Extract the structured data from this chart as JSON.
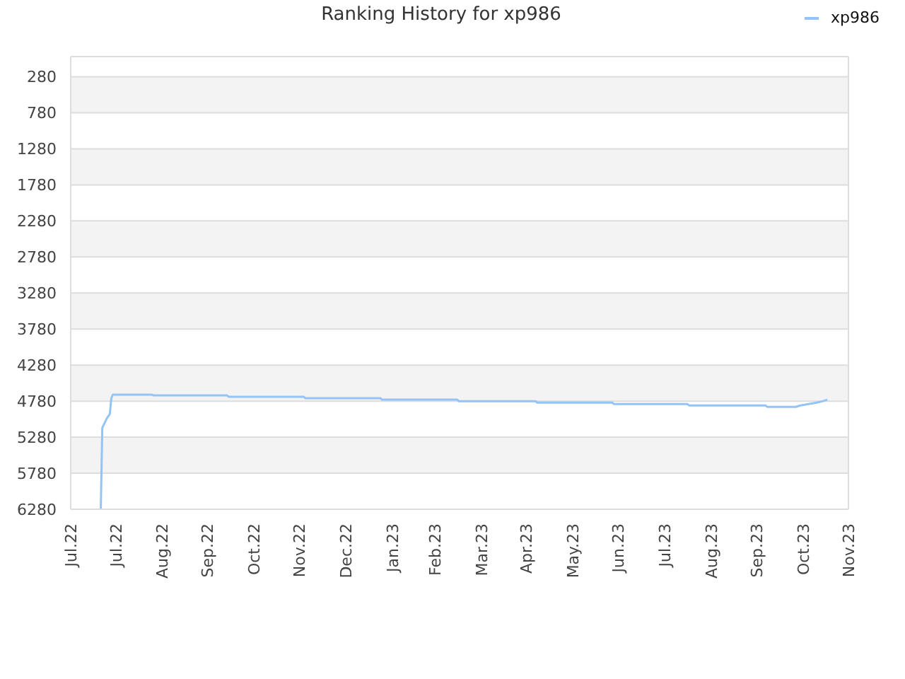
{
  "chart_data": {
    "type": "line",
    "title": "Ranking History for xp986",
    "x": [
      "2022-07-21",
      "2022-07-22",
      "2022-07-25",
      "2022-07-27",
      "2022-07-28",
      "2022-07-29",
      "2022-08-24",
      "2022-08-25",
      "2022-10-13",
      "2022-10-14",
      "2022-12-03",
      "2022-12-04",
      "2023-01-23",
      "2023-01-24",
      "2023-03-15",
      "2023-03-16",
      "2023-05-06",
      "2023-05-07",
      "2023-06-26",
      "2023-06-27",
      "2023-08-15",
      "2023-08-16",
      "2023-10-06",
      "2023-10-07",
      "2023-10-26",
      "2023-10-29",
      "2023-11-09",
      "2023-11-13",
      "2023-11-16"
    ],
    "series": [
      {
        "name": "xp986",
        "color": "#94c4f5",
        "values": [
          6280,
          5150,
          5020,
          4960,
          4740,
          4690,
          4690,
          4700,
          4700,
          4720,
          4720,
          4740,
          4740,
          4760,
          4760,
          4780,
          4780,
          4800,
          4800,
          4820,
          4820,
          4840,
          4840,
          4860,
          4860,
          4840,
          4800,
          4780,
          4760
        ]
      }
    ],
    "xlim": [
      "2022-07-01",
      "2023-11-30"
    ],
    "xticks": [
      {
        "value": "2022-07-01",
        "label": "Jul.22"
      },
      {
        "value": "2022-07-31",
        "label": "Jul.22"
      },
      {
        "value": "2022-08-31",
        "label": "Aug.22"
      },
      {
        "value": "2022-09-30",
        "label": "Sep.22"
      },
      {
        "value": "2022-10-31",
        "label": "Oct.22"
      },
      {
        "value": "2022-11-30",
        "label": "Nov.22"
      },
      {
        "value": "2022-12-31",
        "label": "Dec.22"
      },
      {
        "value": "2023-01-31",
        "label": "Jan.23"
      },
      {
        "value": "2023-02-28",
        "label": "Feb.23"
      },
      {
        "value": "2023-03-31",
        "label": "Mar.23"
      },
      {
        "value": "2023-04-30",
        "label": "Apr.23"
      },
      {
        "value": "2023-05-31",
        "label": "May.23"
      },
      {
        "value": "2023-06-30",
        "label": "Jun.23"
      },
      {
        "value": "2023-07-31",
        "label": "Jul.23"
      },
      {
        "value": "2023-08-31",
        "label": "Aug.23"
      },
      {
        "value": "2023-09-30",
        "label": "Sep.23"
      },
      {
        "value": "2023-10-31",
        "label": "Oct.23"
      },
      {
        "value": "2023-11-30",
        "label": "Nov.23"
      }
    ],
    "ylim": [
      6280,
      0
    ],
    "yticks": [
      280,
      780,
      1280,
      1780,
      2280,
      2780,
      3280,
      3780,
      4280,
      4780,
      5280,
      5780,
      6280
    ],
    "grid": "y",
    "legend": "top right"
  }
}
